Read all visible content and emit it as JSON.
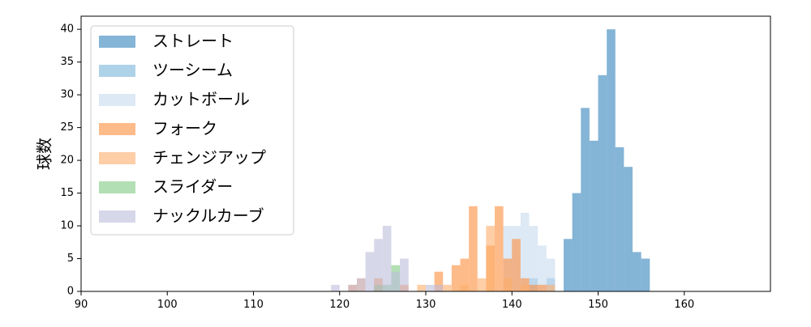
{
  "chart_data": {
    "type": "histogram",
    "ylabel": "球数",
    "xlim": [
      90,
      170
    ],
    "ylim": [
      0,
      42
    ],
    "bin_width": 1,
    "x_ticks": [
      90,
      100,
      110,
      120,
      130,
      140,
      150,
      160
    ],
    "y_ticks": [
      0,
      5,
      10,
      15,
      20,
      25,
      30,
      35,
      40
    ],
    "grid": false,
    "legend_position": "top-left",
    "series": [
      {
        "name": "ストレート",
        "color": "#1f77b4",
        "opacity": 0.55,
        "bins": [
          {
            "x": 146,
            "count": 8
          },
          {
            "x": 147,
            "count": 15
          },
          {
            "x": 148,
            "count": 28
          },
          {
            "x": 149,
            "count": 23
          },
          {
            "x": 150,
            "count": 33
          },
          {
            "x": 151,
            "count": 40
          },
          {
            "x": 152,
            "count": 22
          },
          {
            "x": 153,
            "count": 19
          },
          {
            "x": 154,
            "count": 6
          },
          {
            "x": 155,
            "count": 5
          }
        ]
      },
      {
        "name": "ツーシーム",
        "color": "#6baed6",
        "opacity": 0.55,
        "bins": [
          {
            "x": 142,
            "count": 2
          },
          {
            "x": 144,
            "count": 2
          }
        ]
      },
      {
        "name": "カットボール",
        "color": "#c6dbef",
        "opacity": 0.6,
        "bins": [
          {
            "x": 139,
            "count": 10
          },
          {
            "x": 140,
            "count": 10
          },
          {
            "x": 141,
            "count": 12
          },
          {
            "x": 142,
            "count": 10
          },
          {
            "x": 143,
            "count": 7
          },
          {
            "x": 144,
            "count": 5
          }
        ]
      },
      {
        "name": "フォーク",
        "color": "#fd8d3c",
        "opacity": 0.6,
        "bins": [
          {
            "x": 121,
            "count": 1
          },
          {
            "x": 124,
            "count": 2
          },
          {
            "x": 127,
            "count": 1
          },
          {
            "x": 131,
            "count": 3
          },
          {
            "x": 133,
            "count": 4
          },
          {
            "x": 134,
            "count": 5
          },
          {
            "x": 135,
            "count": 13
          },
          {
            "x": 137,
            "count": 7
          },
          {
            "x": 138,
            "count": 13
          },
          {
            "x": 139,
            "count": 5
          },
          {
            "x": 140,
            "count": 8
          },
          {
            "x": 141,
            "count": 2
          },
          {
            "x": 142,
            "count": 1
          },
          {
            "x": 143,
            "count": 1
          }
        ]
      },
      {
        "name": "チェンジアップ",
        "color": "#fdae6b",
        "opacity": 0.6,
        "bins": [
          {
            "x": 122,
            "count": 2
          },
          {
            "x": 129,
            "count": 1
          },
          {
            "x": 132,
            "count": 1
          },
          {
            "x": 134,
            "count": 1
          },
          {
            "x": 136,
            "count": 2
          },
          {
            "x": 137,
            "count": 10
          },
          {
            "x": 139,
            "count": 2
          },
          {
            "x": 141,
            "count": 1
          },
          {
            "x": 144,
            "count": 1
          }
        ]
      },
      {
        "name": "スライダー",
        "color": "#74c476",
        "opacity": 0.55,
        "bins": [
          {
            "x": 124,
            "count": 1
          },
          {
            "x": 125,
            "count": 1
          },
          {
            "x": 126,
            "count": 4
          }
        ]
      },
      {
        "name": "ナックルカーブ",
        "color": "#bcbddc",
        "opacity": 0.6,
        "bins": [
          {
            "x": 119,
            "count": 1
          },
          {
            "x": 121,
            "count": 1
          },
          {
            "x": 122,
            "count": 2
          },
          {
            "x": 123,
            "count": 6
          },
          {
            "x": 124,
            "count": 8
          },
          {
            "x": 125,
            "count": 10
          },
          {
            "x": 126,
            "count": 3
          },
          {
            "x": 127,
            "count": 5
          },
          {
            "x": 130,
            "count": 1
          },
          {
            "x": 131,
            "count": 1
          }
        ]
      }
    ]
  }
}
